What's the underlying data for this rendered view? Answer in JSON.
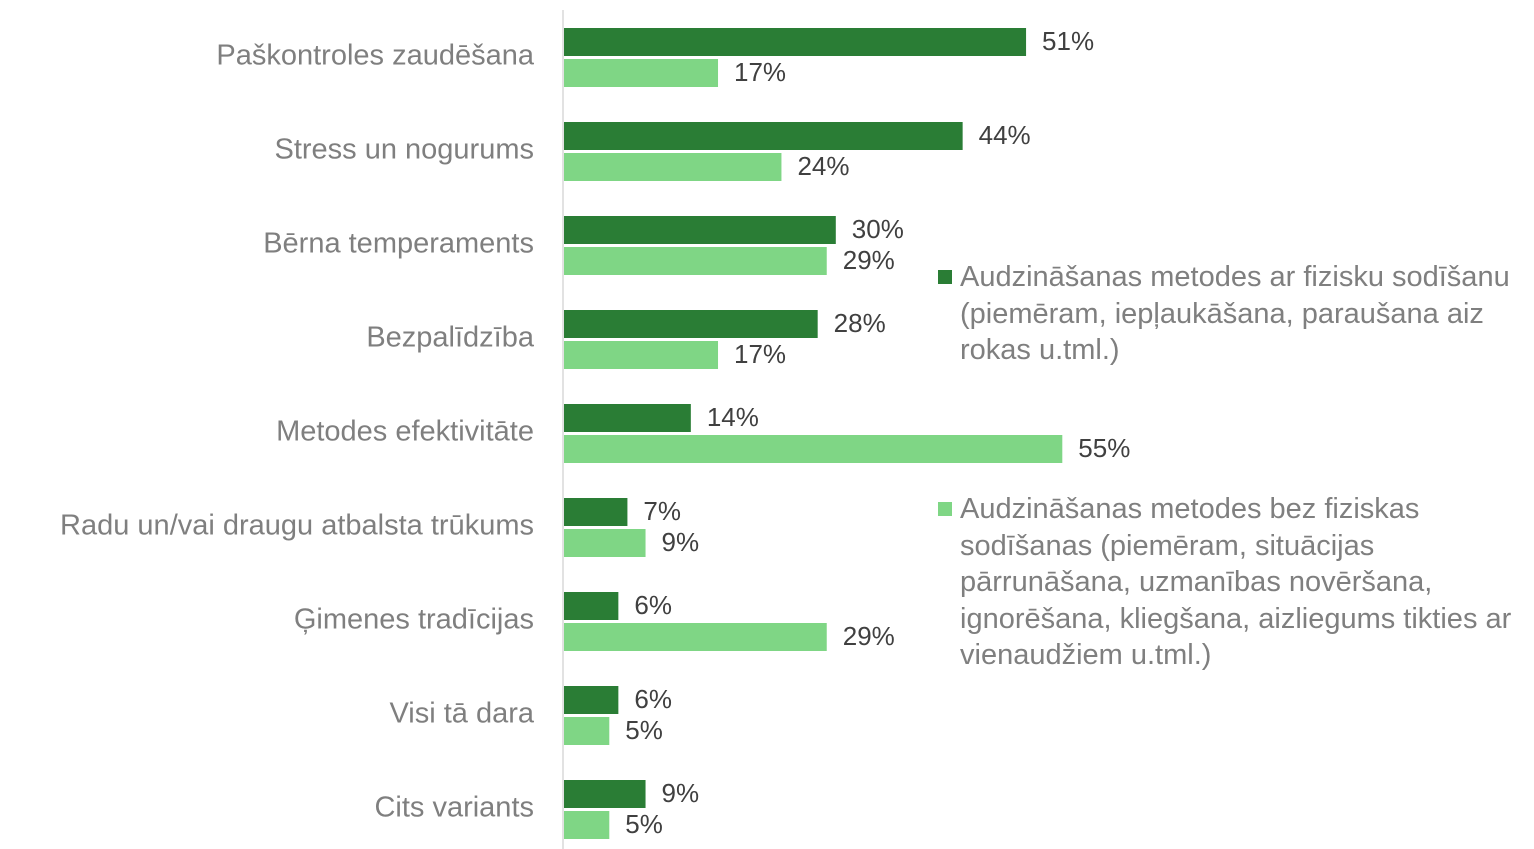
{
  "chart_data": {
    "type": "bar",
    "orientation": "horizontal",
    "categories": [
      "Paškontroles zaudēšana",
      "Stress un nogurums",
      "Bērna temperaments",
      "Bezpalīdzība",
      "Metodes efektivitāte",
      "Radu un/vai draugu atbalsta trūkums",
      "Ģimenes tradīcijas",
      "Visi tā dara",
      "Cits variants"
    ],
    "series": [
      {
        "name": "Audzināšanas metodes ar fizisku sodīšanu (piemēram, iepļaukāšana, paraušana aiz rokas u.tml.)",
        "color": "#2a7d35",
        "values": [
          51,
          44,
          30,
          28,
          14,
          7,
          6,
          6,
          9
        ],
        "value_labels": [
          "51%",
          "44%",
          "30%",
          "28%",
          "14%",
          "7%",
          "6%",
          "6%",
          "9%"
        ]
      },
      {
        "name": "Audzināšanas metodes bez fiziskas sodīšanas (piemēram, situācijas pārrunāšana, uzmanības novēršana, ignorēšana, kliegšana, aizliegums tikties ar vienaudžiem u.tml.)",
        "color": "#7fd685",
        "values": [
          17,
          24,
          29,
          17,
          55,
          9,
          29,
          5,
          5
        ],
        "value_labels": [
          "17%",
          "24%",
          "29%",
          "17%",
          "55%",
          "9%",
          "29%",
          "5%",
          "5%"
        ]
      }
    ],
    "legend": "right"
  }
}
